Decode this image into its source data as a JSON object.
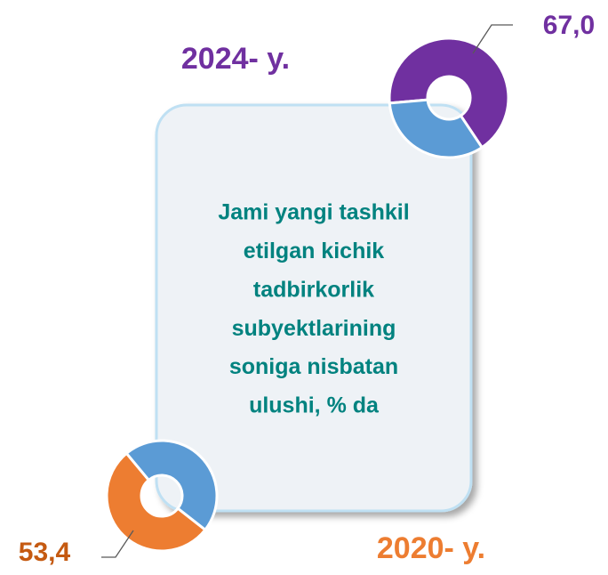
{
  "chart_data": [
    {
      "type": "donut",
      "title": "2024- y.",
      "values": [
        67.0,
        33.0
      ],
      "value_labels": [
        "67,0",
        null
      ],
      "colors": [
        "#7030a0",
        "#5b9bd5"
      ]
    },
    {
      "type": "donut",
      "title": "2020- y.",
      "values": [
        53.4,
        46.6
      ],
      "value_labels": [
        "53,4",
        null
      ],
      "colors": [
        "#ed7d31",
        "#5b9bd5"
      ]
    }
  ],
  "center_text": [
    "Jami yangi tashkil",
    "etilgan kichik",
    "tadbirkorlik",
    "subyektlarining",
    "soniga nisbatan",
    "ulushi, % da"
  ]
}
